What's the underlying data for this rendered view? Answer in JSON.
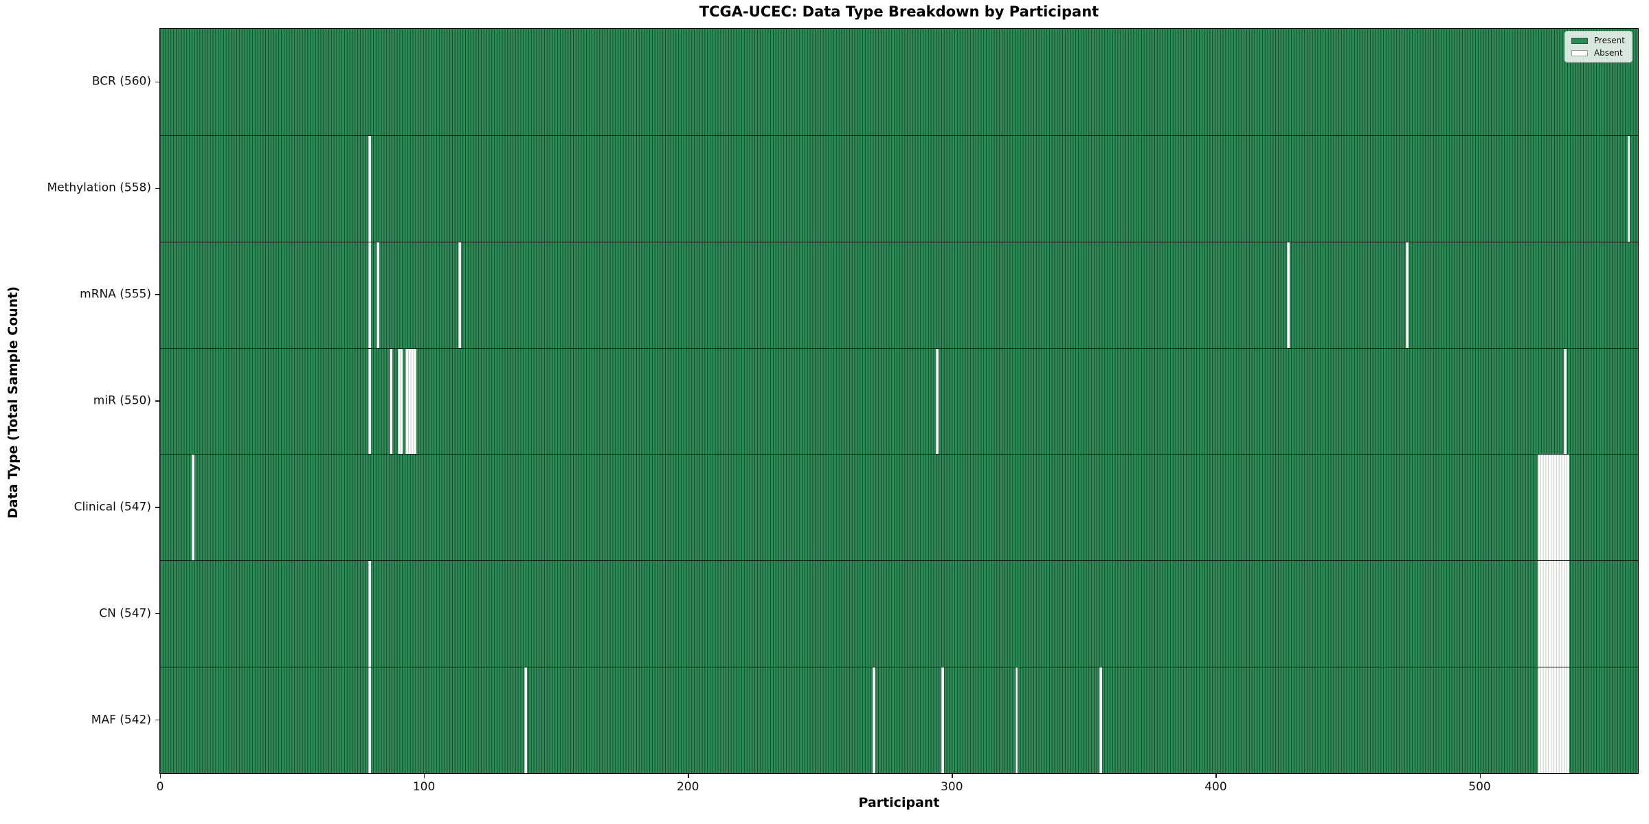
{
  "figure": {
    "background": "#ffffff"
  },
  "chart_data": {
    "type": "heatmap",
    "title": "TCGA-UCEC: Data Type Breakdown by Participant",
    "xlabel": "Participant",
    "ylabel": "Data Type (Total Sample Count)",
    "x_ticks": [
      0,
      100,
      200,
      300,
      400,
      500
    ],
    "xlim": [
      0,
      560
    ],
    "n_participants": 560,
    "grid": false,
    "legend": {
      "position": "upper right",
      "entries": [
        {
          "label": "Present",
          "color": "#2e8b57",
          "edge": "#444444"
        },
        {
          "label": "Absent",
          "color": "#ffffff",
          "edge": "#999999"
        }
      ]
    },
    "colors": {
      "present": "#2e8b57",
      "absent": "#ffffff",
      "bar_edge": "#1b1b1b",
      "absent_bar_edge": "#c2c6c2"
    },
    "rows": [
      {
        "label": "BCR (560)",
        "data_type": "BCR",
        "total_samples": 560,
        "absent_participants": []
      },
      {
        "label": "Methylation (558)",
        "data_type": "Methylation",
        "total_samples": 558,
        "absent_participants": [
          79,
          556
        ]
      },
      {
        "label": "mRNA (555)",
        "data_type": "mRNA",
        "total_samples": 555,
        "absent_participants": [
          79,
          82,
          113,
          427,
          472
        ]
      },
      {
        "label": "miR (550)",
        "data_type": "miR",
        "total_samples": 550,
        "absent_participants": [
          79,
          87,
          90,
          91,
          93,
          94,
          95,
          96,
          294,
          532
        ]
      },
      {
        "label": "Clinical (547)",
        "data_type": "Clinical",
        "total_samples": 547,
        "absent_participants": [
          12,
          522,
          523,
          524,
          525,
          526,
          527,
          528,
          529,
          530,
          531,
          532,
          533
        ]
      },
      {
        "label": "CN (547)",
        "data_type": "CN",
        "total_samples": 547,
        "absent_participants": [
          79,
          522,
          523,
          524,
          525,
          526,
          527,
          528,
          529,
          530,
          531,
          532,
          533
        ]
      },
      {
        "label": "MAF (542)",
        "data_type": "MAF",
        "total_samples": 542,
        "absent_participants": [
          79,
          138,
          270,
          296,
          324,
          356,
          522,
          523,
          524,
          525,
          526,
          527,
          528,
          529,
          530,
          531,
          532,
          533
        ]
      }
    ]
  }
}
